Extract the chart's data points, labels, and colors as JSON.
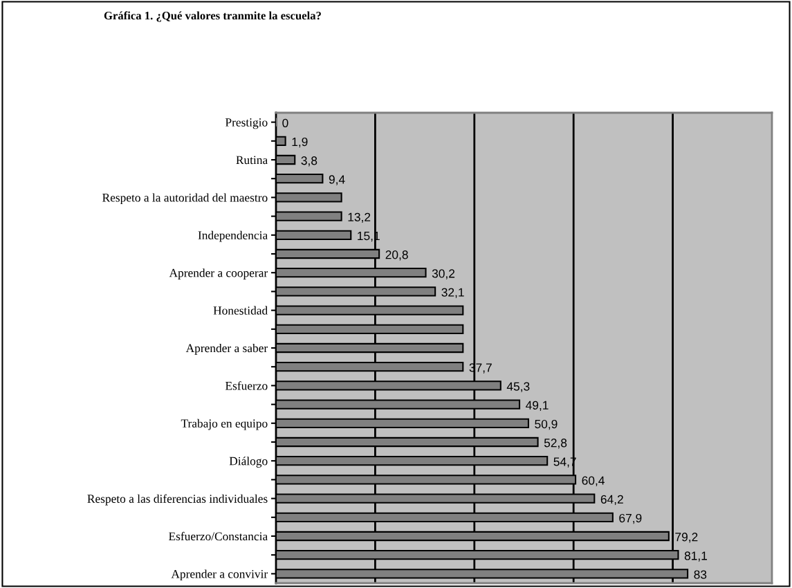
{
  "chart_data": {
    "type": "bar",
    "orientation": "horizontal",
    "title": "Gráfica 1. ¿Qué valores tranmite la escuela?",
    "categories": [
      "Prestigio",
      null,
      "Rutina",
      null,
      "Respeto a la autoridad del maestro",
      null,
      "Independencia",
      null,
      "Aprender a cooperar",
      null,
      "Honestidad",
      null,
      "Aprender a saber",
      null,
      "Esfuerzo",
      null,
      "Trabajo en equipo",
      null,
      "Diálogo",
      null,
      "Respeto a las diferencias individuales",
      null,
      "Esfuerzo/Constancia",
      null,
      "Aprender a convivir"
    ],
    "values": [
      0,
      1.9,
      3.8,
      9.4,
      13.2,
      13.2,
      15.1,
      20.8,
      30.2,
      32.1,
      37.7,
      37.7,
      37.7,
      37.7,
      45.3,
      49.1,
      50.9,
      52.8,
      54.7,
      60.4,
      64.2,
      67.9,
      79.2,
      81.1,
      83
    ],
    "value_labels": [
      "0",
      "1,9",
      "3,8",
      "9,4",
      null,
      "13,2",
      "15,1",
      "20,8",
      "30,2",
      "32,1",
      null,
      null,
      null,
      "37,7",
      "45,3",
      "49,1",
      "50,9",
      "52,8",
      "54,7",
      "60,4",
      "64,2",
      "67,9",
      "79,2",
      "81,1",
      "83"
    ],
    "color": "#808080",
    "xlim": [
      0,
      100
    ],
    "xticks": [
      {
        "value": 20,
        "label": null
      },
      {
        "value": 40,
        "label": null
      },
      {
        "value": 60,
        "label": null
      },
      {
        "value": 80,
        "label": null
      }
    ],
    "grid": "x",
    "tick_labels": "y"
  }
}
